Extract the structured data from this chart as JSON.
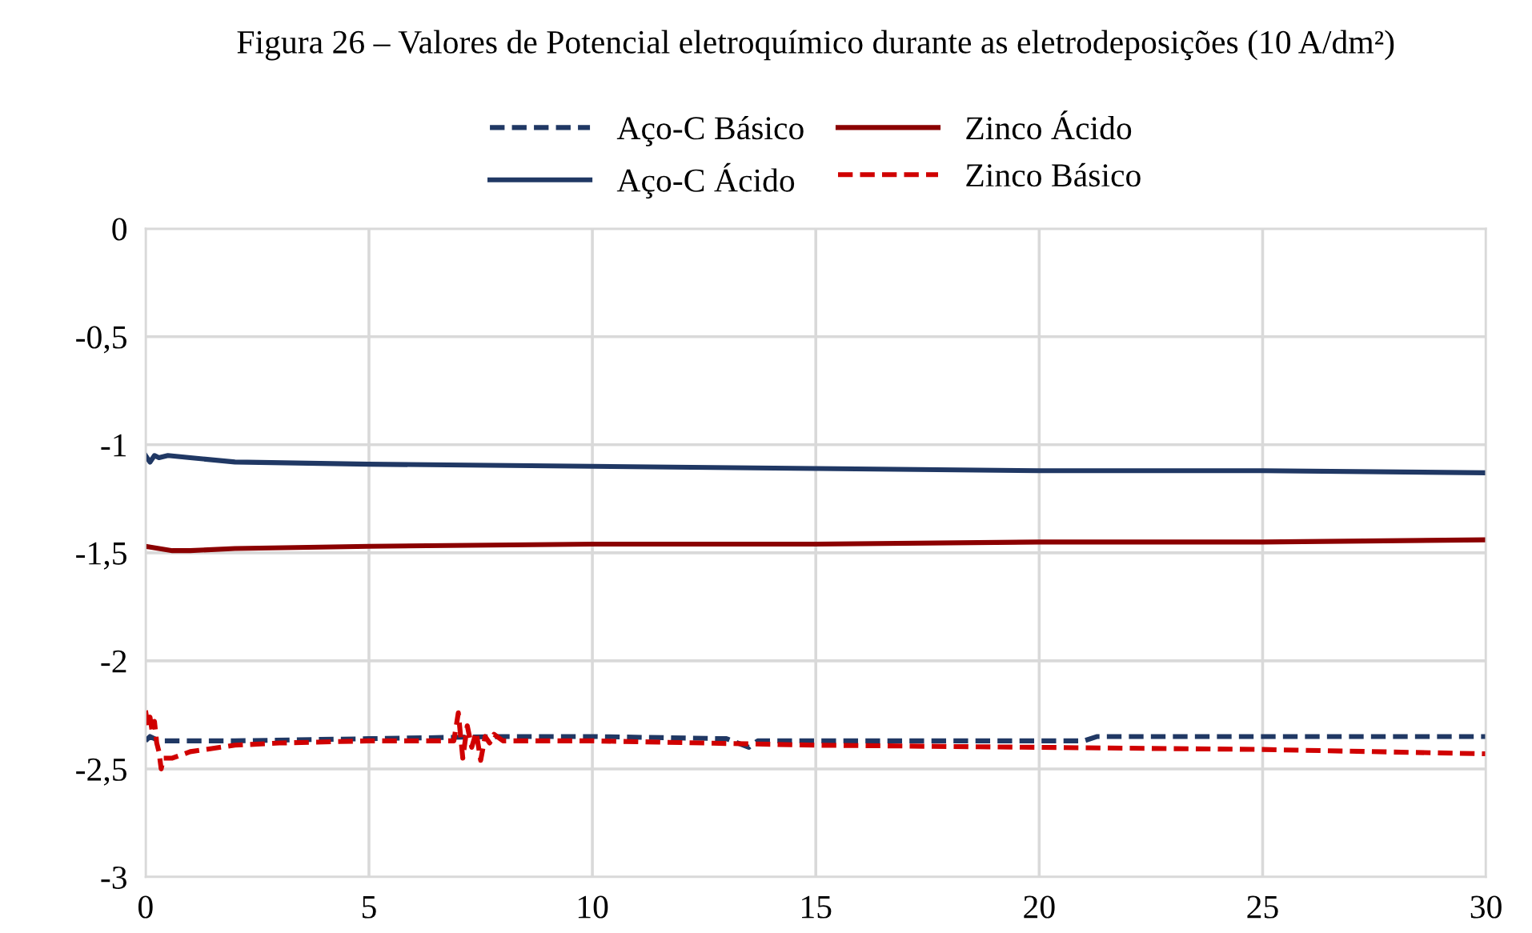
{
  "chart_data": {
    "type": "line",
    "title": "Figura 26 – Valores de Potencial eletroquímico durante as eletrodeposições (10 A/dm²)",
    "xlim": [
      0,
      30
    ],
    "xticks": [
      0,
      5,
      10,
      15,
      20,
      25,
      30
    ],
    "ylim": [
      -3,
      0
    ],
    "yticks": [
      0,
      {
        "value": -0.5,
        "label": "-0,5"
      },
      {
        "value": -1,
        "label": "-1"
      },
      {
        "value": -1.5,
        "label": "-1,5"
      },
      {
        "value": -2,
        "label": "-2"
      },
      {
        "value": -2.5,
        "label": "-2,5"
      },
      {
        "value": -3,
        "label": "-3"
      }
    ],
    "grid": true,
    "legend": "top",
    "series": [
      {
        "name": "Aço-C Básico",
        "color": "#203864",
        "line_style": "dashed",
        "x": [
          0,
          0.1,
          0.3,
          2,
          5,
          8,
          10,
          13,
          13.5,
          13.7,
          15,
          18,
          21,
          21.3,
          25,
          30
        ],
        "values": [
          -2.37,
          -2.35,
          -2.37,
          -2.37,
          -2.36,
          -2.35,
          -2.35,
          -2.36,
          -2.4,
          -2.37,
          -2.37,
          -2.37,
          -2.37,
          -2.35,
          -2.35,
          -2.35
        ]
      },
      {
        "name": "Aço-C Ácido",
        "color": "#203864",
        "line_style": "solid",
        "x": [
          0,
          0.1,
          0.2,
          0.3,
          0.5,
          1,
          2,
          5,
          10,
          15,
          20,
          25,
          30
        ],
        "values": [
          -1.05,
          -1.08,
          -1.05,
          -1.06,
          -1.05,
          -1.06,
          -1.08,
          -1.09,
          -1.1,
          -1.11,
          -1.12,
          -1.12,
          -1.13
        ]
      },
      {
        "name": "Zinco Ácido",
        "color": "#8b0000",
        "line_style": "solid",
        "x": [
          0,
          0.3,
          0.6,
          1,
          2,
          5,
          10,
          15,
          20,
          25,
          30
        ],
        "values": [
          -1.47,
          -1.48,
          -1.49,
          -1.49,
          -1.48,
          -1.47,
          -1.46,
          -1.46,
          -1.45,
          -1.45,
          -1.44
        ]
      },
      {
        "name": "Zinco Básico",
        "color": "#d00000",
        "line_style": "dashed",
        "x": [
          0,
          0.05,
          0.1,
          0.15,
          0.2,
          0.25,
          0.3,
          0.35,
          0.4,
          0.6,
          1,
          2,
          3,
          5,
          6.9,
          7.0,
          7.1,
          7.2,
          7.3,
          7.4,
          7.5,
          7.6,
          7.7,
          7.8,
          8.0,
          8.3,
          10,
          15,
          20,
          25,
          30
        ],
        "values": [
          -2.23,
          -2.3,
          -2.26,
          -2.33,
          -2.28,
          -2.38,
          -2.42,
          -2.5,
          -2.45,
          -2.45,
          -2.42,
          -2.39,
          -2.38,
          -2.37,
          -2.37,
          -2.24,
          -2.45,
          -2.3,
          -2.4,
          -2.33,
          -2.46,
          -2.35,
          -2.38,
          -2.34,
          -2.37,
          -2.37,
          -2.37,
          -2.39,
          -2.4,
          -2.41,
          -2.43
        ]
      }
    ]
  }
}
